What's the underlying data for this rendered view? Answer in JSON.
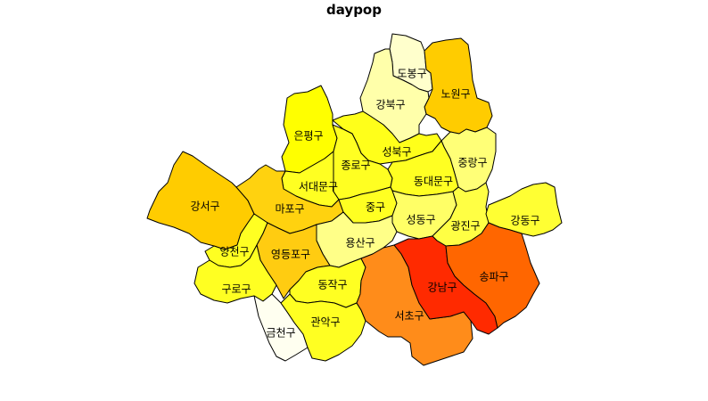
{
  "title": "daypop",
  "colors": {
    "very_light": "#ffffe0",
    "pale_yellow": "#ffff99",
    "yellow": "#ffff33",
    "bright_yellow": "#ffff00",
    "amber": "#ffcc00",
    "orange": "#ff8c1a",
    "dark_orange": "#ff6600",
    "red": "#ff2a00"
  },
  "districts": [
    {
      "name": "도봉구",
      "color": "#ffffcc"
    },
    {
      "name": "노원구",
      "color": "#ffcc00"
    },
    {
      "name": "강북구",
      "color": "#ffffaa"
    },
    {
      "name": "은평구",
      "color": "#ffff00"
    },
    {
      "name": "성북구",
      "color": "#ffff1a"
    },
    {
      "name": "중랑구",
      "color": "#ffff77"
    },
    {
      "name": "종로구",
      "color": "#ffff22"
    },
    {
      "name": "동대문구",
      "color": "#ffff22"
    },
    {
      "name": "서대문구",
      "color": "#ffff22"
    },
    {
      "name": "강서구",
      "color": "#ffcc00"
    },
    {
      "name": "마포구",
      "color": "#ffd20f"
    },
    {
      "name": "중구",
      "color": "#ffff22"
    },
    {
      "name": "성동구",
      "color": "#ffff66"
    },
    {
      "name": "광진구",
      "color": "#ffff44"
    },
    {
      "name": "강동구",
      "color": "#ffff33"
    },
    {
      "name": "용산구",
      "color": "#ffff88"
    },
    {
      "name": "양천구",
      "color": "#ffff22"
    },
    {
      "name": "영등포구",
      "color": "#ffcc11"
    },
    {
      "name": "구로구",
      "color": "#ffff22"
    },
    {
      "name": "동작구",
      "color": "#ffff22"
    },
    {
      "name": "금천구",
      "color": "#fffff0"
    },
    {
      "name": "관악구",
      "color": "#ffff22"
    },
    {
      "name": "서초구",
      "color": "#ff8c1a"
    },
    {
      "name": "강남구",
      "color": "#ff2a00"
    },
    {
      "name": "송파구",
      "color": "#ff6600"
    }
  ]
}
